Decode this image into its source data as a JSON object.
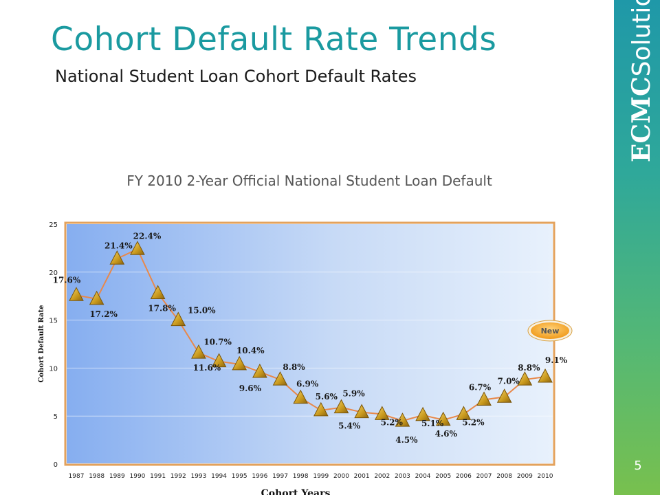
{
  "header": {
    "title": "Cohort Default Rate Trends",
    "subtitle": "National Student Loan Cohort Default Rates"
  },
  "brand": {
    "part1": "ECMC",
    "part2": "Solutions"
  },
  "page_number": "5",
  "new_badge": "New",
  "colors": {
    "accent": "#1a9aa0",
    "line": "#e8884a",
    "marker": "#c8981c"
  },
  "chart_data": {
    "type": "line",
    "title": "FY 2010 2-Year Official National Student Loan Default",
    "xlabel": "Cohort Years",
    "ylabel": "Cohort Default Rate",
    "ylim": [
      0,
      25
    ],
    "yticks": [
      0,
      5,
      10,
      15,
      20,
      25
    ],
    "grid": true,
    "categories": [
      "1987",
      "1988",
      "1989",
      "1990",
      "1991",
      "1992",
      "1993",
      "1994",
      "1995",
      "1996",
      "1997",
      "1998",
      "1999",
      "2000",
      "2001",
      "2002",
      "2003",
      "2004",
      "2005",
      "2006",
      "2007",
      "2008",
      "2009",
      "2010"
    ],
    "series": [
      {
        "values": [
          17.6,
          17.2,
          21.4,
          22.4,
          17.8,
          15.0,
          11.6,
          10.7,
          10.4,
          9.6,
          8.8,
          6.9,
          5.6,
          5.9,
          5.4,
          5.2,
          4.5,
          5.1,
          4.6,
          5.2,
          6.7,
          7.0,
          8.8,
          9.1
        ],
        "labels": [
          "17.6%",
          "17.2%",
          "21.4%",
          "22.4%",
          "17.8%",
          "15.0%",
          "11.6%",
          "10.7%",
          "10.4%",
          "9.6%",
          "8.8%",
          "6.9%",
          "5.6%",
          "5.9%",
          "5.4%",
          "5.2%",
          "4.5%",
          "5.1%",
          "4.6%",
          "5.2%",
          "6.7%",
          "7.0%",
          "8.8%",
          "9.1%"
        ]
      }
    ]
  }
}
